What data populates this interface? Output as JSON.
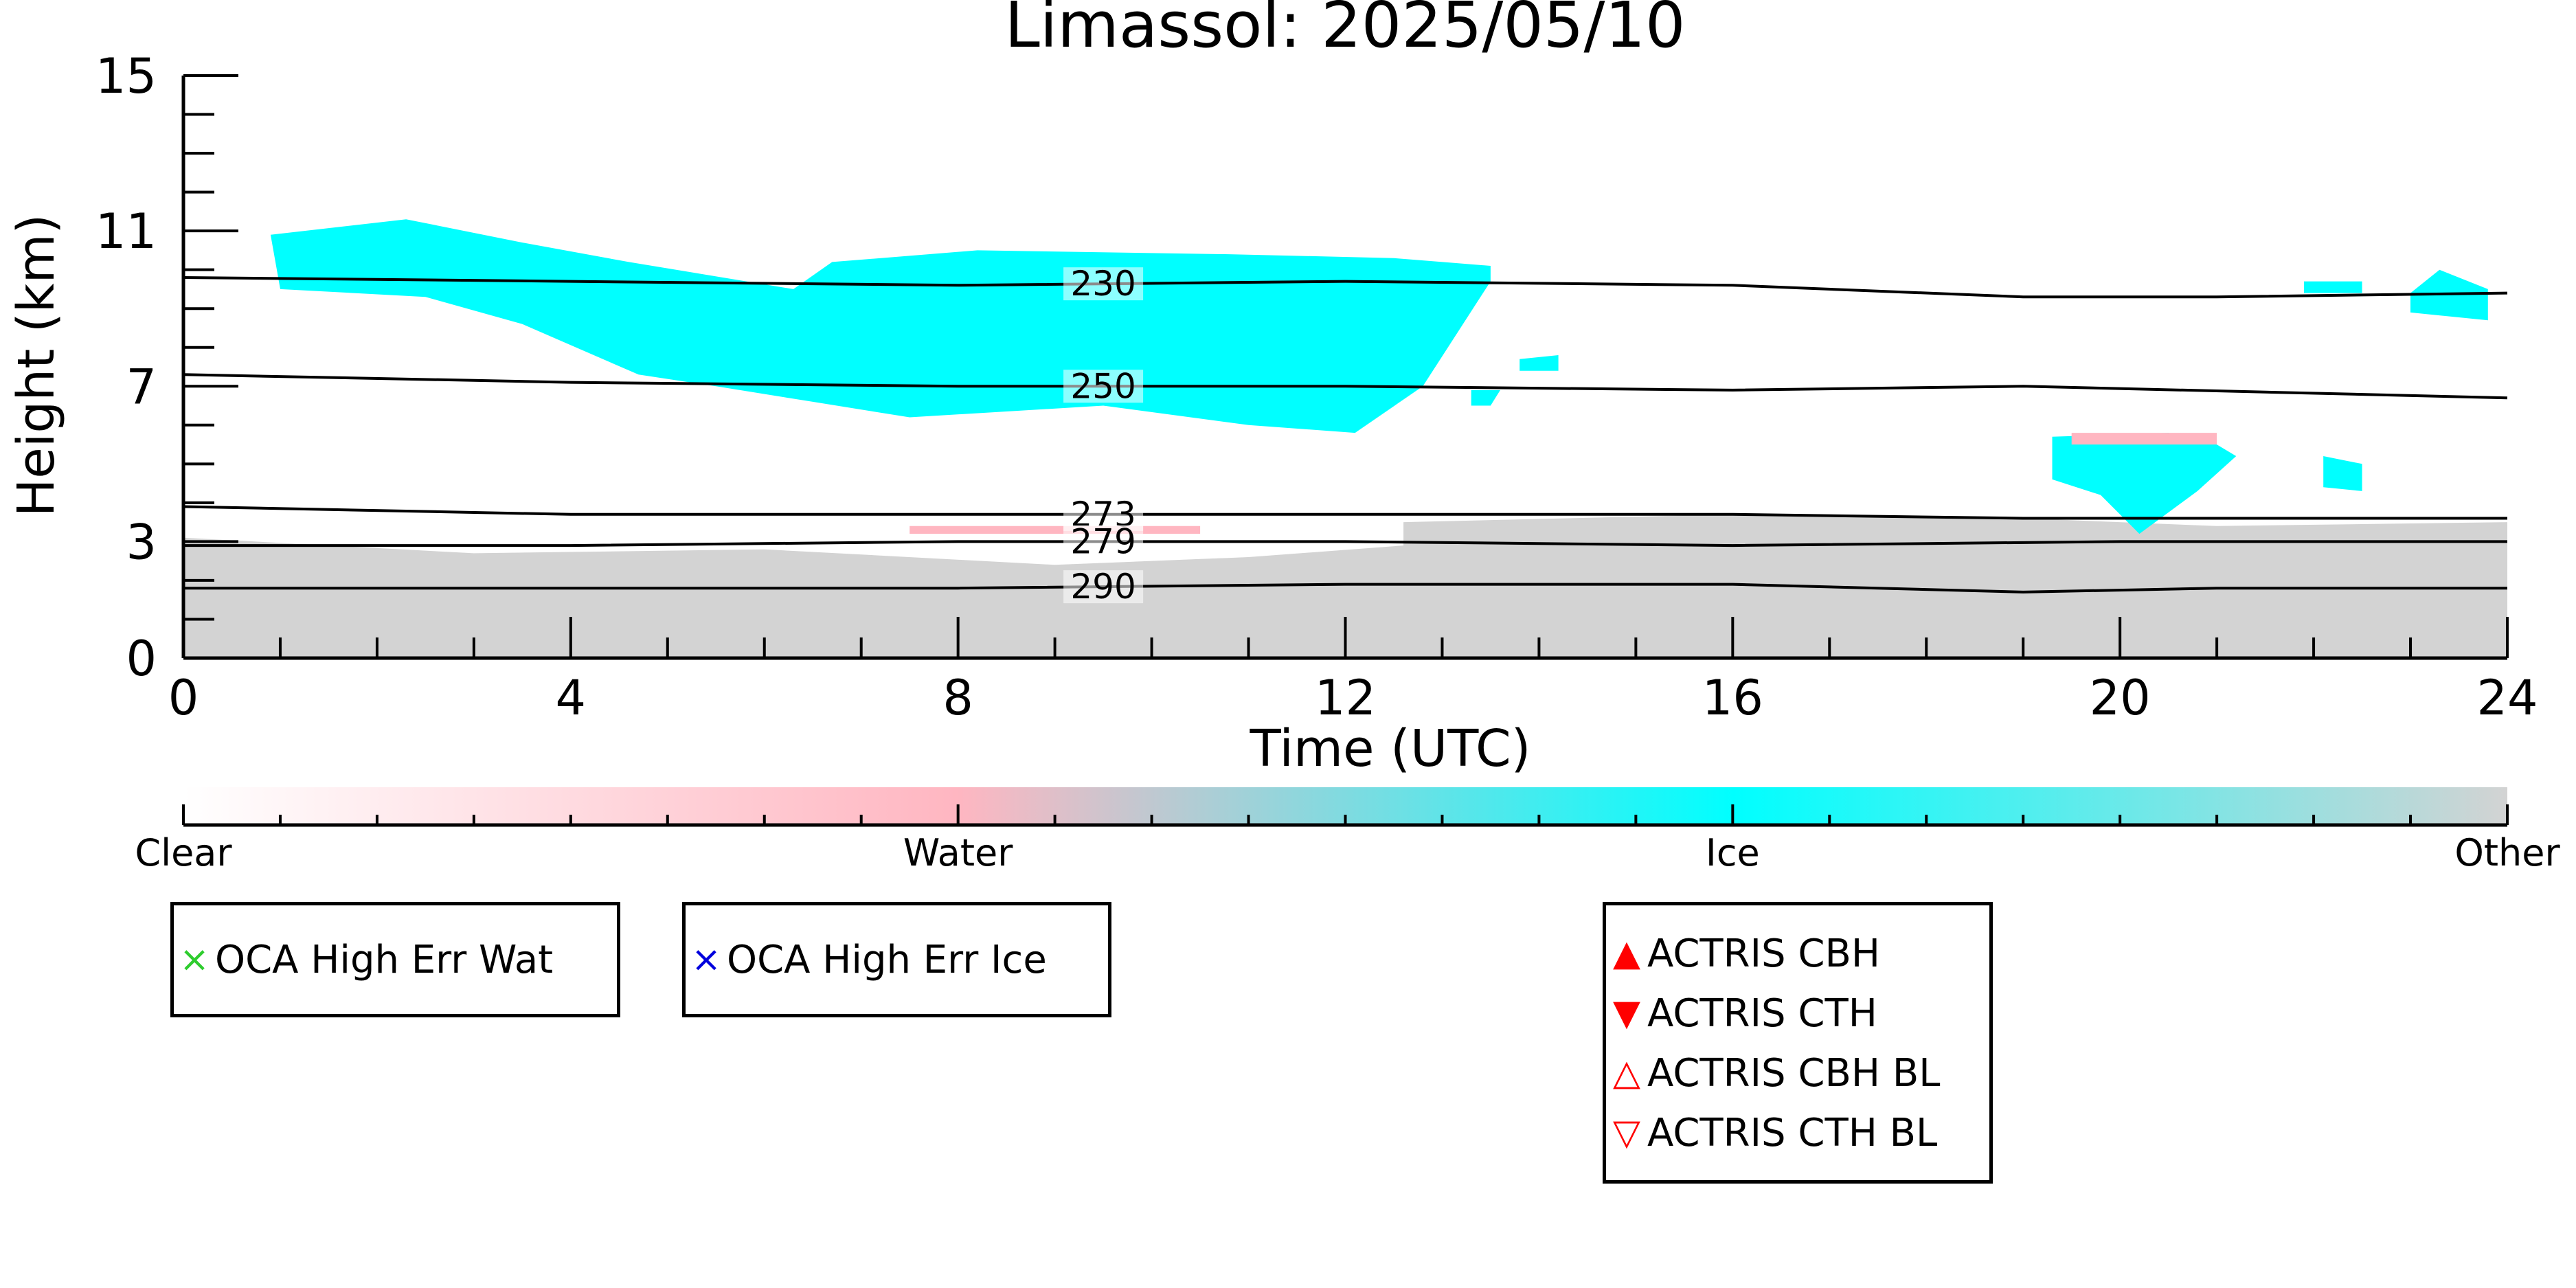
{
  "chart_data": {
    "type": "heatmap",
    "title": "Limassol: 2025/05/10",
    "xlabel": "Time (UTC)",
    "ylabel": "Height (km)",
    "xlim": [
      0,
      24
    ],
    "ylim": [
      0,
      15
    ],
    "x_ticks": [
      "0",
      "4",
      "8",
      "12",
      "16",
      "20",
      "24"
    ],
    "x_tick_values": [
      0,
      4,
      8,
      12,
      16,
      20,
      24
    ],
    "y_ticks": [
      "0",
      "3",
      "7",
      "11",
      "15"
    ],
    "y_tick_values": [
      0,
      3,
      7,
      11,
      15
    ],
    "colorbar": {
      "labels": [
        "Clear",
        "Water",
        "Ice",
        "Other"
      ],
      "colors": [
        "#ffffff",
        "#ffb6c1",
        "#00ffff",
        "#d3d3d3"
      ]
    },
    "contours": [
      {
        "label": "230",
        "x": [
          0,
          4,
          8,
          12,
          16,
          19,
          21,
          24
        ],
        "y": [
          9.8,
          9.7,
          9.6,
          9.7,
          9.6,
          9.3,
          9.3,
          9.4
        ]
      },
      {
        "label": "250",
        "x": [
          0,
          4,
          8,
          12,
          16,
          19,
          24
        ],
        "y": [
          7.3,
          7.1,
          7.0,
          7.0,
          6.9,
          7.0,
          6.7
        ]
      },
      {
        "label": "273",
        "x": [
          0,
          4,
          8,
          12,
          16,
          19,
          24
        ],
        "y": [
          3.9,
          3.7,
          3.7,
          3.7,
          3.7,
          3.6,
          3.6
        ]
      },
      {
        "label": "279",
        "x": [
          0,
          4,
          8,
          12,
          16,
          20,
          24
        ],
        "y": [
          2.9,
          2.9,
          3.0,
          3.0,
          2.9,
          3.0,
          3.0
        ]
      },
      {
        "label": "290",
        "x": [
          0,
          4,
          8,
          12,
          16,
          19,
          21,
          24
        ],
        "y": [
          1.8,
          1.8,
          1.8,
          1.9,
          1.9,
          1.7,
          1.8,
          1.8
        ]
      }
    ],
    "regions": [
      {
        "class": "Other",
        "x": [
          0,
          3,
          6,
          9,
          11,
          12.6,
          12.6,
          16,
          19,
          21,
          24,
          24,
          0
        ],
        "y": [
          3.1,
          2.7,
          2.8,
          2.4,
          2.6,
          2.9,
          3.5,
          3.7,
          3.6,
          3.4,
          3.5,
          0,
          0
        ]
      },
      {
        "class": "Ice",
        "x": [
          0.9,
          2.3,
          3.5,
          4.6,
          6.3,
          6.7,
          8.2,
          10.8,
          12.5,
          13.5,
          13.5,
          12.8,
          12.1,
          11.0,
          9.5,
          7.5,
          6.5,
          5.5,
          4.7,
          3.5,
          2.5,
          1.0
        ],
        "y": [
          10.9,
          11.3,
          10.7,
          10.2,
          9.5,
          10.2,
          10.5,
          10.4,
          10.3,
          10.1,
          9.7,
          7.0,
          5.8,
          6.0,
          6.5,
          6.2,
          6.6,
          7.0,
          7.3,
          8.6,
          9.3,
          9.5
        ]
      },
      {
        "class": "Ice",
        "x": [
          19.3,
          20.5,
          21.0,
          21.2,
          20.8,
          20.2,
          19.8,
          19.3
        ],
        "y": [
          5.7,
          5.8,
          5.5,
          5.2,
          4.3,
          3.2,
          4.2,
          4.6
        ]
      },
      {
        "class": "Ice",
        "x": [
          22.1,
          22.5,
          22.5,
          22.1
        ],
        "y": [
          5.2,
          5.0,
          4.3,
          4.4
        ]
      },
      {
        "class": "Ice",
        "x": [
          23.0,
          23.3,
          23.8,
          23.8,
          23.0
        ],
        "y": [
          9.4,
          10.0,
          9.5,
          8.7,
          8.9
        ]
      },
      {
        "class": "Ice",
        "x": [
          13.8,
          14.2,
          14.2,
          13.8
        ],
        "y": [
          7.7,
          7.8,
          7.4,
          7.4
        ]
      },
      {
        "class": "Ice",
        "x": [
          13.3,
          13.6,
          13.5,
          13.3
        ],
        "y": [
          6.9,
          6.9,
          6.5,
          6.5
        ]
      },
      {
        "class": "Ice",
        "x": [
          21.9,
          22.5,
          22.5,
          21.9
        ],
        "y": [
          9.7,
          9.7,
          9.4,
          9.4
        ]
      },
      {
        "class": "Water",
        "x": [
          19.5,
          21.0,
          21.0,
          19.5
        ],
        "y": [
          5.8,
          5.8,
          5.5,
          5.5
        ]
      },
      {
        "class": "Water",
        "x": [
          7.5,
          10.5,
          10.5,
          7.5
        ],
        "y": [
          3.4,
          3.4,
          3.2,
          3.2
        ]
      }
    ]
  },
  "legends": [
    {
      "entries": [
        {
          "marker": "×",
          "color": "#2ecc2e",
          "label": "OCA High Err Wat"
        }
      ]
    },
    {
      "entries": [
        {
          "marker": "×",
          "color": "#0000dd",
          "label": "OCA High Err Ice"
        }
      ]
    },
    {
      "entries": [
        {
          "marker": "▲",
          "color": "#ff0000",
          "label": "ACTRIS CBH"
        },
        {
          "marker": "▼",
          "color": "#ff0000",
          "label": "ACTRIS CTH"
        },
        {
          "marker": "△",
          "color": "#ff0000",
          "label": "ACTRIS CBH BL"
        },
        {
          "marker": "▽",
          "color": "#ff0000",
          "label": "ACTRIS CTH BL"
        }
      ]
    }
  ]
}
